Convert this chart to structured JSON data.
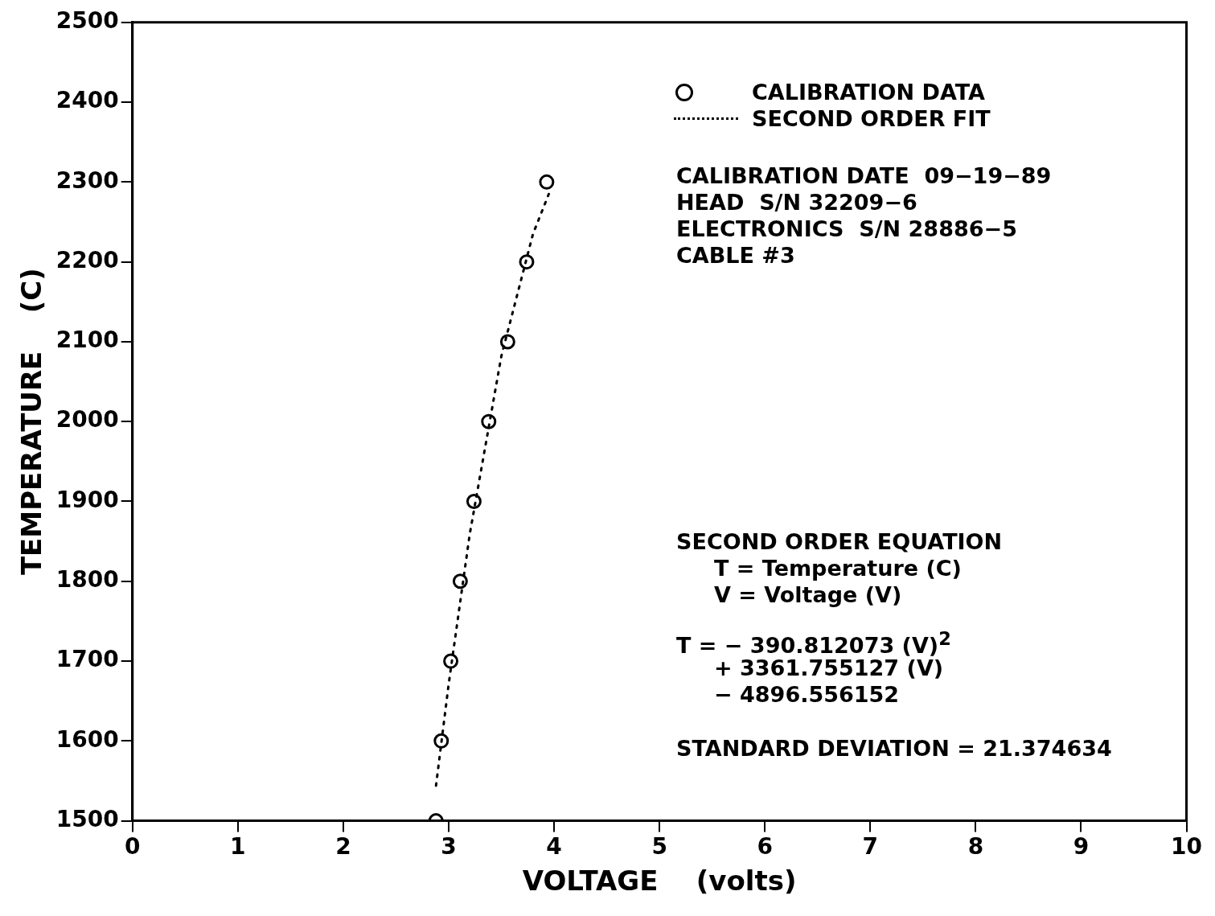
{
  "chart_data": {
    "type": "scatter",
    "xlabel": "VOLTAGE    (volts)",
    "ylabel": "TEMPERATURE    (C)",
    "xlim": [
      0,
      10
    ],
    "xticks": [
      0,
      1,
      2,
      3,
      4,
      5,
      6,
      7,
      8,
      9,
      10
    ],
    "ylim": [
      1500,
      2500
    ],
    "yticks": [
      1500,
      1600,
      1700,
      1800,
      1900,
      2000,
      2100,
      2200,
      2300,
      2400,
      2500
    ],
    "grid": false,
    "legend": "top right",
    "series": [
      {
        "name": "CALIBRATION DATA",
        "marker": "circle",
        "color": "#000000",
        "x": [
          2.88,
          2.93,
          3.02,
          3.11,
          3.24,
          3.38,
          3.56,
          3.74,
          3.93
        ],
        "values": [
          1500,
          1600,
          1700,
          1800,
          1900,
          2000,
          2100,
          2200,
          2300
        ]
      },
      {
        "name": "SECOND ORDER FIT",
        "type": "line",
        "marker": "none",
        "line_style": "dotted",
        "color": "#000000",
        "x": [
          2.88,
          3.0,
          3.2,
          3.5,
          3.8,
          3.95
        ],
        "values": [
          1544,
          1671,
          1859,
          2082,
          2235,
          2285
        ]
      }
    ],
    "annotations": [
      "CALIBRATION DATE  09−19−89",
      "HEAD  S/N 32209−6",
      "ELECTRONICS  S/N 28886−5",
      "CABLE #3",
      "SECOND ORDER EQUATION",
      "     T = Temperature (C)",
      "     V = Voltage (V)",
      "T = − 390.812073 (V)$^{2}$",
      "     + 3361.755127 (V)",
      "     − 4896.556152",
      "STANDARD DEVIATION = 21.374634"
    ]
  }
}
